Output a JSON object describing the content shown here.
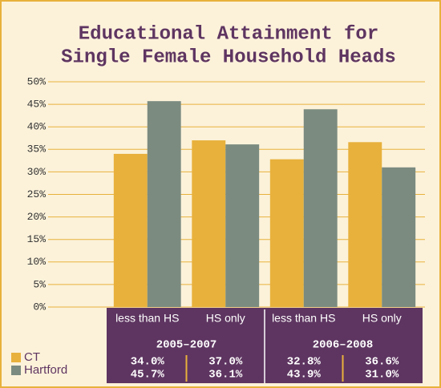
{
  "chart_data": {
    "type": "bar",
    "title": [
      "Educational Attainment for",
      "Single Female Household Heads"
    ],
    "categories": [
      "less than HS",
      "HS only",
      "less than HS",
      "HS only"
    ],
    "groups": [
      "2005–2007",
      "2006–2008"
    ],
    "series": [
      {
        "name": "CT",
        "color": "#e8b13c",
        "values": [
          34.0,
          37.0,
          32.8,
          36.6
        ],
        "value_labels": [
          "34.0%",
          "37.0%",
          "32.8%",
          "36.6%"
        ]
      },
      {
        "name": "Hartford",
        "color": "#7b8b80",
        "values": [
          45.7,
          36.1,
          43.9,
          31.0
        ],
        "value_labels": [
          "45.7%",
          "36.1%",
          "43.9%",
          "31.0%"
        ]
      }
    ],
    "ylim": [
      0,
      50
    ],
    "yticks": [
      {
        "value": 0,
        "label": "0%"
      },
      {
        "value": 5,
        "label": "5%"
      },
      {
        "value": 10,
        "label": "10%"
      },
      {
        "value": 15,
        "label": "15%"
      },
      {
        "value": 20,
        "label": "20%"
      },
      {
        "value": 25,
        "label": "25%"
      },
      {
        "value": 30,
        "label": "30%"
      },
      {
        "value": 35,
        "label": "35%"
      },
      {
        "value": 40,
        "label": "40%"
      },
      {
        "value": 45,
        "label": "45%"
      },
      {
        "value": 50,
        "label": "50%"
      }
    ],
    "grid": true
  }
}
